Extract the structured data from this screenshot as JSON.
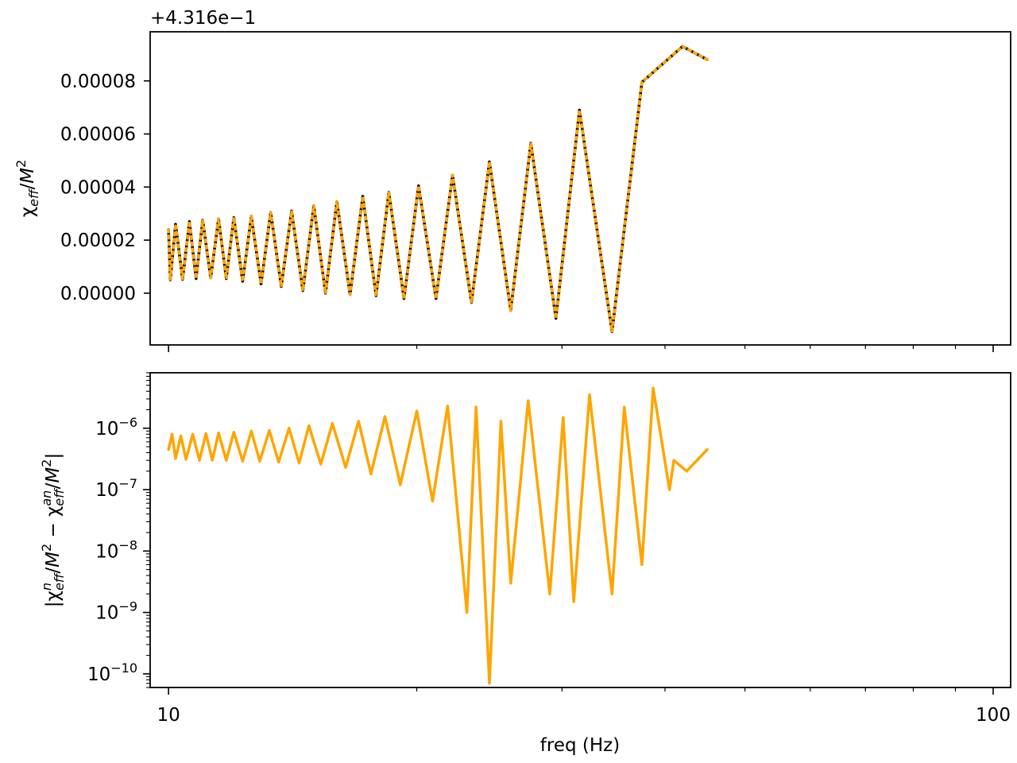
{
  "chart_data": [
    {
      "type": "line",
      "panel": "top",
      "offset_text": "+4.316e−1",
      "ylabel": "χ_eff/M^2",
      "xlabel": "",
      "xscale": "log",
      "xlim": [
        9.5,
        105
      ],
      "ylim": [
        -1.95e-05,
        9.85e-05
      ],
      "yticks": [
        0.0,
        2e-05,
        4e-05,
        6e-05,
        8e-05
      ],
      "ytick_labels": [
        "0.00000",
        "0.00002",
        "0.00004",
        "0.00006",
        "0.00008"
      ],
      "xticks": [
        10,
        100
      ],
      "xtick_labels": [
        "",
        ""
      ],
      "series": [
        {
          "color": "#000000",
          "style": "solid",
          "points": [
            [
              10,
              2.4e-05
            ],
            [
              10.05,
              5e-06
            ],
            [
              10.2,
              2.6e-05
            ],
            [
              10.4,
              5.2e-06
            ],
            [
              10.6,
              2.7e-05
            ],
            [
              10.8,
              5.5e-06
            ],
            [
              11.0,
              2.75e-05
            ],
            [
              11.25,
              5.8e-06
            ],
            [
              11.5,
              2.8e-05
            ],
            [
              11.75,
              5.5e-06
            ],
            [
              12.0,
              2.85e-05
            ],
            [
              12.3,
              4.5e-06
            ],
            [
              12.6,
              2.9e-05
            ],
            [
              12.95,
              3.5e-06
            ],
            [
              13.3,
              3.05e-05
            ],
            [
              13.7,
              2.5e-06
            ],
            [
              14.1,
              3.1e-05
            ],
            [
              14.55,
              1e-06
            ],
            [
              15.0,
              3.3e-05
            ],
            [
              15.5,
              0.0
            ],
            [
              16.0,
              3.45e-05
            ],
            [
              16.6,
              -5e-07
            ],
            [
              17.2,
              3.65e-05
            ],
            [
              17.85,
              -1e-06
            ],
            [
              18.5,
              3.8e-05
            ],
            [
              19.3,
              -2e-06
            ],
            [
              20.1,
              4.05e-05
            ],
            [
              21.1,
              -2e-06
            ],
            [
              22.1,
              4.45e-05
            ],
            [
              23.3,
              -3.5e-06
            ],
            [
              24.5,
              4.95e-05
            ],
            [
              26.0,
              -6.5e-06
            ],
            [
              27.5,
              5.65e-05
            ],
            [
              29.5,
              -9.5e-06
            ],
            [
              31.5,
              6.9e-05
            ],
            [
              34.5,
              -1.45e-05
            ],
            [
              37.5,
              7.95e-05
            ],
            [
              42.0,
              9.3e-05
            ],
            [
              45.0,
              8.8e-05
            ]
          ]
        },
        {
          "color": "#ffa500",
          "style": "dotted",
          "points": [
            [
              10,
              2.4e-05
            ],
            [
              10.05,
              5e-06
            ],
            [
              10.2,
              2.6e-05
            ],
            [
              10.4,
              5.2e-06
            ],
            [
              10.6,
              2.7e-05
            ],
            [
              10.8,
              5.5e-06
            ],
            [
              11.0,
              2.75e-05
            ],
            [
              11.25,
              5.8e-06
            ],
            [
              11.5,
              2.8e-05
            ],
            [
              11.75,
              5.5e-06
            ],
            [
              12.0,
              2.85e-05
            ],
            [
              12.3,
              4.5e-06
            ],
            [
              12.6,
              2.9e-05
            ],
            [
              12.95,
              3.5e-06
            ],
            [
              13.3,
              3.05e-05
            ],
            [
              13.7,
              2.5e-06
            ],
            [
              14.1,
              3.1e-05
            ],
            [
              14.55,
              1e-06
            ],
            [
              15.0,
              3.3e-05
            ],
            [
              15.5,
              0.0
            ],
            [
              16.0,
              3.45e-05
            ],
            [
              16.6,
              -5e-07
            ],
            [
              17.2,
              3.65e-05
            ],
            [
              17.85,
              -1e-06
            ],
            [
              18.5,
              3.8e-05
            ],
            [
              19.3,
              -2e-06
            ],
            [
              20.1,
              4.05e-05
            ],
            [
              21.1,
              -2e-06
            ],
            [
              22.1,
              4.45e-05
            ],
            [
              23.3,
              -3.5e-06
            ],
            [
              24.5,
              4.95e-05
            ],
            [
              26.0,
              -6.5e-06
            ],
            [
              27.5,
              5.65e-05
            ],
            [
              29.5,
              -9.5e-06
            ],
            [
              31.5,
              6.9e-05
            ],
            [
              34.5,
              -1.45e-05
            ],
            [
              37.5,
              7.95e-05
            ],
            [
              42.0,
              9.3e-05
            ],
            [
              45.0,
              8.8e-05
            ]
          ]
        }
      ]
    },
    {
      "type": "line",
      "panel": "bottom",
      "ylabel": "|χ^n_eff/M^2 − χ^an_eff/M^2|",
      "xlabel": "freq (Hz)",
      "xscale": "log",
      "yscale": "log",
      "xlim": [
        9.5,
        105
      ],
      "ylim": [
        6e-11,
        8e-06
      ],
      "yticks": [
        1e-10,
        1e-09,
        1e-08,
        1e-07,
        1e-06
      ],
      "ytick_labels": [
        "10^−10",
        "10^−9",
        "10^−8",
        "10^−7",
        "10^−6"
      ],
      "xticks": [
        10,
        100
      ],
      "xtick_labels": [
        "10",
        "100"
      ],
      "series": [
        {
          "color": "#ffa500",
          "style": "solid",
          "points": [
            [
              10,
              4.5e-07
            ],
            [
              10.1,
              8e-07
            ],
            [
              10.2,
              3.2e-07
            ],
            [
              10.35,
              7.5e-07
            ],
            [
              10.5,
              3.1e-07
            ],
            [
              10.7,
              8e-07
            ],
            [
              10.9,
              3e-07
            ],
            [
              11.1,
              8.2e-07
            ],
            [
              11.3,
              3e-07
            ],
            [
              11.5,
              8.4e-07
            ],
            [
              11.75,
              3e-07
            ],
            [
              12.0,
              8.6e-07
            ],
            [
              12.3,
              2.9e-07
            ],
            [
              12.6,
              9e-07
            ],
            [
              12.9,
              2.9e-07
            ],
            [
              13.25,
              9.2e-07
            ],
            [
              13.6,
              2.8e-07
            ],
            [
              14.0,
              1e-06
            ],
            [
              14.4,
              2.7e-07
            ],
            [
              14.8,
              1.1e-06
            ],
            [
              15.3,
              2.6e-07
            ],
            [
              15.8,
              1.2e-06
            ],
            [
              16.4,
              2.3e-07
            ],
            [
              17.0,
              1.3e-06
            ],
            [
              17.6,
              1.8e-07
            ],
            [
              18.3,
              1.55e-06
            ],
            [
              19.1,
              1.2e-07
            ],
            [
              20.0,
              1.9e-06
            ],
            [
              20.9,
              6.5e-08
            ],
            [
              21.8,
              2.3e-06
            ],
            [
              23.0,
              1e-09
            ],
            [
              23.6,
              2.2e-06
            ],
            [
              24.5,
              7e-11
            ],
            [
              25.3,
              1.3e-06
            ],
            [
              26.0,
              3e-09
            ],
            [
              27.3,
              2.8e-06
            ],
            [
              29.0,
              2e-09
            ],
            [
              30.1,
              1.5e-06
            ],
            [
              31.0,
              1.5e-09
            ],
            [
              32.4,
              3.5e-06
            ],
            [
              34.5,
              2e-09
            ],
            [
              35.7,
              2.2e-06
            ],
            [
              37.5,
              6e-09
            ],
            [
              38.7,
              4.5e-06
            ],
            [
              40.5,
              1e-07
            ],
            [
              41.0,
              3e-07
            ],
            [
              42.5,
              2e-07
            ],
            [
              45.0,
              4.5e-07
            ]
          ]
        }
      ]
    }
  ]
}
